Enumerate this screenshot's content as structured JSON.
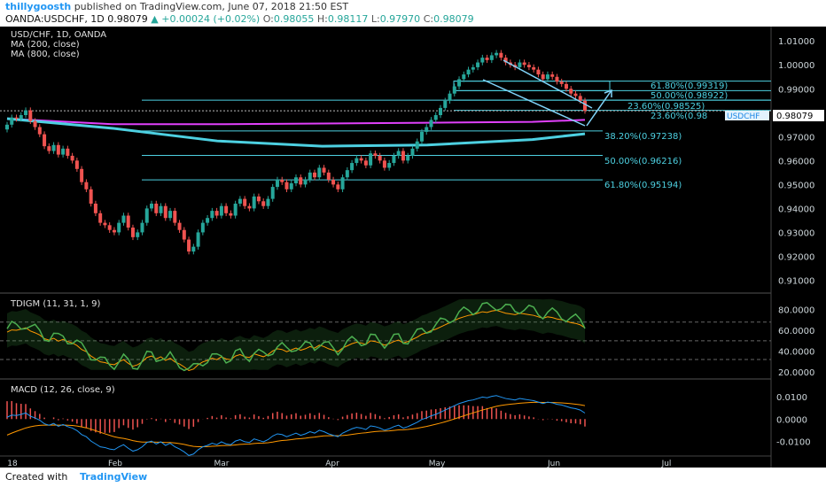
{
  "header": {
    "author": "thillygoosth",
    "published_text": "published on TradingView.com, June 07, 2018 21:50 EST",
    "symbol": "OANDA:USDCHF, 1D",
    "last": "0.98079",
    "change": "▲ +0.00024 (+0.02%)",
    "o_label": "O:",
    "o": "0.98055",
    "h_label": "H:",
    "h": "0.98117",
    "l_label": "L:",
    "l": "0.97970",
    "c_label": "C:",
    "c": "0.98079"
  },
  "main_legend": {
    "title": "USD/CHF, 1D, OANDA",
    "ma1": "MA (200, close)",
    "ma2": "MA (800, close)"
  },
  "fib_labels": [
    "61.80%(0.99319)",
    "50.00%(0.98922)",
    "23.60%(0.98525)",
    "23.60%(0.98",
    "38.20%(0.97238)",
    "50.00%(0.96216)",
    "61.80%(0.95194)"
  ],
  "price_badge": "0.98079",
  "symbol_tag": "USDCHF",
  "tdigm_title": "TDIGM (11, 31, 1, 9)",
  "macd_title": "MACD (12, 26, close, 9)",
  "footer": {
    "created": "Created with",
    "logo": "TradingView"
  },
  "colors": {
    "up": "#26a69a",
    "down": "#ef5350",
    "ma200": "#e040fb",
    "ma800": "#4dd0e1",
    "fib": "#4dd0e1",
    "rsi": "#4caf50",
    "macd_signal": "#ff9800",
    "macd_line": "#2196f3"
  },
  "chart_data": [
    {
      "type": "candlestick",
      "title": "USD/CHF, 1D, OANDA",
      "x_ticks": [
        "18",
        "Feb",
        "Mar",
        "Apr",
        "May",
        "Jun",
        "Jul"
      ],
      "y_ticks": [
        1.01,
        1.0,
        0.99,
        0.98,
        0.97,
        0.96,
        0.95,
        0.94,
        0.93,
        0.92,
        0.91
      ],
      "ylim": [
        0.905,
        1.016
      ],
      "series": [
        {
          "name": "MA (200, close)",
          "x": [
            0,
            30,
            60,
            90,
            120,
            150,
            165
          ],
          "y": [
            0.9775,
            0.9752,
            0.9752,
            0.9755,
            0.9758,
            0.9762,
            0.977
          ]
        },
        {
          "name": "MA (800, close)",
          "x": [
            0,
            30,
            60,
            90,
            120,
            150,
            165
          ],
          "y": [
            0.9775,
            0.9735,
            0.9682,
            0.966,
            0.9665,
            0.9688,
            0.9712
          ]
        }
      ],
      "close": [
        0.975,
        0.978,
        0.9775,
        0.979,
        0.981,
        0.9765,
        0.974,
        0.971,
        0.966,
        0.964,
        0.9665,
        0.9625,
        0.965,
        0.962,
        0.96,
        0.9565,
        0.951,
        0.948,
        0.942,
        0.938,
        0.934,
        0.933,
        0.931,
        0.93,
        0.934,
        0.937,
        0.932,
        0.928,
        0.93,
        0.934,
        0.94,
        0.942,
        0.938,
        0.941,
        0.936,
        0.939,
        0.934,
        0.931,
        0.927,
        0.922,
        0.924,
        0.93,
        0.934,
        0.936,
        0.939,
        0.937,
        0.941,
        0.938,
        0.937,
        0.942,
        0.944,
        0.941,
        0.94,
        0.945,
        0.943,
        0.941,
        0.944,
        0.949,
        0.952,
        0.951,
        0.948,
        0.9505,
        0.953,
        0.95,
        0.952,
        0.955,
        0.953,
        0.957,
        0.955,
        0.952,
        0.95,
        0.948,
        0.953,
        0.956,
        0.959,
        0.961,
        0.96,
        0.958,
        0.963,
        0.962,
        0.96,
        0.957,
        0.959,
        0.962,
        0.964,
        0.96,
        0.962,
        0.965,
        0.968,
        0.972,
        0.974,
        0.977,
        0.979,
        0.982,
        0.985,
        0.988,
        0.991,
        0.994,
        0.996,
        0.998,
        0.999,
        1.001,
        1.003,
        1.002,
        1.004,
        1.005,
        1.003,
        1.001,
        1.0,
        0.999,
        1.001,
        1.0,
        0.999,
        0.998,
        0.996,
        0.994,
        0.996,
        0.995,
        0.993,
        0.992,
        0.99,
        0.988,
        0.987,
        0.985,
        0.9808
      ],
      "fib_levels_upper": [
        0.99319,
        0.98922,
        0.98525,
        0.981
      ],
      "fib_levels_lower": [
        0.97238,
        0.96216,
        0.95194
      ],
      "last_price": 0.98079
    },
    {
      "type": "line",
      "title": "TDIGM (11, 31, 1, 9)",
      "y_ticks": [
        80.0,
        60.0,
        40.0,
        20.0
      ],
      "ylim": [
        15,
        95
      ],
      "levels": [
        68,
        50,
        32
      ]
    },
    {
      "type": "line",
      "title": "MACD (12, 26, close, 9)",
      "y_ticks": [
        0.01,
        0.0,
        -0.01
      ],
      "ylim": [
        -0.016,
        0.017
      ]
    }
  ]
}
